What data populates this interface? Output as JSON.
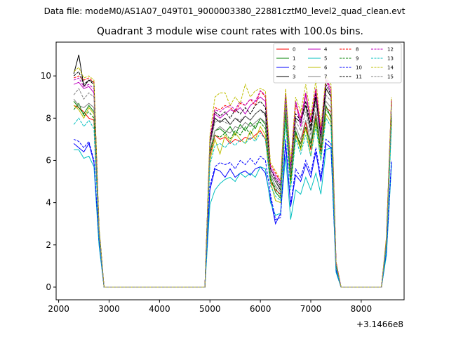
{
  "suptitle": "Data file: modeM0/AS1A07_049T01_9000003380_22881cztM0_level2_quad_clean.evt",
  "chart_data": {
    "type": "line",
    "title": "Quadrant 3 module wise count rates with 100.0s bins.",
    "xlabel": "",
    "ylabel": "",
    "x_offset_label": "+3.1466e8",
    "xlim": [
      1950,
      8850
    ],
    "ylim": [
      -0.6,
      11.6
    ],
    "x_ticks": [
      2000,
      3000,
      4000,
      5000,
      6000,
      7000,
      8000
    ],
    "x_tick_labels": [
      "2000",
      "3000",
      "4000",
      "5000",
      "6000",
      "7000",
      "8000"
    ],
    "y_ticks": [
      0,
      2,
      4,
      6,
      8,
      10
    ],
    "y_tick_labels": [
      "0",
      "2",
      "4",
      "6",
      "8",
      "10"
    ],
    "grid": false,
    "legend_position": "top-right",
    "x": [
      2300,
      2400,
      2500,
      2600,
      2700,
      2800,
      2900,
      3000,
      3100,
      3200,
      3300,
      3400,
      3500,
      3600,
      3700,
      3800,
      3900,
      4000,
      4100,
      4200,
      4300,
      4400,
      4500,
      4600,
      4700,
      4800,
      4900,
      5000,
      5100,
      5200,
      5300,
      5400,
      5500,
      5600,
      5700,
      5800,
      5900,
      6000,
      6100,
      6200,
      6300,
      6400,
      6500,
      6600,
      6700,
      6800,
      6900,
      7000,
      7100,
      7200,
      7300,
      7400,
      7500,
      7600,
      7700,
      7800,
      7900,
      8000,
      8100,
      8200,
      8300,
      8400,
      8500,
      8600
    ],
    "series": [
      {
        "name": "0",
        "color": "#ff0000",
        "dash": "solid",
        "values": [
          8.6,
          8.5,
          8.3,
          8.0,
          7.9,
          2.5,
          0,
          0,
          0,
          0,
          0,
          0,
          0,
          0,
          0,
          0,
          0,
          0,
          0,
          0,
          0,
          0,
          0,
          0,
          0,
          0,
          0,
          6.2,
          7.2,
          7.0,
          7.1,
          6.8,
          7.0,
          6.9,
          7.1,
          7.0,
          7.2,
          7.4,
          7.0,
          5.0,
          4.6,
          4.4,
          8.4,
          5.0,
          7.2,
          6.8,
          7.8,
          6.5,
          8.2,
          6.4,
          8.5,
          8.3,
          1.0,
          0,
          0,
          0,
          0,
          0,
          0,
          0,
          0,
          0,
          2.0,
          8.0
        ]
      },
      {
        "name": "1",
        "color": "#008000",
        "dash": "solid",
        "values": [
          8.8,
          8.5,
          8.2,
          8.6,
          8.3,
          2.6,
          0,
          0,
          0,
          0,
          0,
          0,
          0,
          0,
          0,
          0,
          0,
          0,
          0,
          0,
          0,
          0,
          0,
          0,
          0,
          0,
          0,
          6.4,
          7.4,
          7.5,
          7.3,
          7.6,
          7.2,
          7.7,
          7.4,
          7.8,
          7.5,
          8.0,
          7.7,
          5.2,
          4.5,
          4.2,
          8.3,
          5.2,
          7.4,
          6.6,
          7.5,
          6.8,
          8.0,
          6.6,
          8.6,
          8.0,
          1.0,
          0,
          0,
          0,
          0,
          0,
          0,
          0,
          0,
          0,
          2.1,
          8.1
        ]
      },
      {
        "name": "2",
        "color": "#0000ff",
        "dash": "solid",
        "values": [
          6.8,
          6.6,
          6.4,
          6.8,
          5.9,
          2.2,
          0,
          0,
          0,
          0,
          0,
          0,
          0,
          0,
          0,
          0,
          0,
          0,
          0,
          0,
          0,
          0,
          0,
          0,
          0,
          0,
          0,
          4.6,
          5.6,
          5.5,
          5.2,
          5.6,
          5.2,
          5.4,
          5.5,
          5.3,
          5.6,
          5.7,
          5.4,
          4.2,
          3.0,
          3.5,
          6.8,
          3.8,
          5.3,
          5.0,
          5.8,
          5.2,
          6.4,
          5.0,
          6.8,
          6.6,
          0.8,
          0,
          0,
          0,
          0,
          0,
          0,
          0,
          0,
          0,
          1.6,
          5.9
        ]
      },
      {
        "name": "3",
        "color": "#000000",
        "dash": "solid",
        "values": [
          10.1,
          11.0,
          9.5,
          9.8,
          9.7,
          2.8,
          0,
          0,
          0,
          0,
          0,
          0,
          0,
          0,
          0,
          0,
          0,
          0,
          0,
          0,
          0,
          0,
          0,
          0,
          0,
          0,
          0,
          6.8,
          8.0,
          7.8,
          8.0,
          7.7,
          8.0,
          7.8,
          8.1,
          7.9,
          8.2,
          8.4,
          8.2,
          5.4,
          5.0,
          4.6,
          9.0,
          5.4,
          8.0,
          7.8,
          8.6,
          7.4,
          9.0,
          7.0,
          9.4,
          9.0,
          1.1,
          0,
          0,
          0,
          0,
          0,
          0,
          0,
          0,
          0,
          2.2,
          8.9
        ]
      },
      {
        "name": "4",
        "color": "#bf00bf",
        "dash": "solid",
        "values": [
          9.6,
          9.7,
          9.4,
          9.5,
          9.2,
          2.7,
          0,
          0,
          0,
          0,
          0,
          0,
          0,
          0,
          0,
          0,
          0,
          0,
          0,
          0,
          0,
          0,
          0,
          0,
          0,
          0,
          0,
          6.9,
          8.2,
          8.0,
          8.2,
          8.4,
          8.3,
          8.5,
          8.2,
          8.6,
          8.8,
          9.0,
          8.8,
          5.6,
          5.2,
          4.9,
          9.1,
          5.6,
          8.8,
          7.6,
          9.1,
          7.8,
          9.2,
          7.2,
          9.8,
          9.2,
          1.2,
          0,
          0,
          0,
          0,
          0,
          0,
          0,
          0,
          0,
          2.3,
          8.8
        ]
      },
      {
        "name": "5",
        "color": "#00bfbf",
        "dash": "solid",
        "values": [
          6.5,
          6.5,
          6.1,
          6.2,
          5.7,
          2.0,
          0,
          0,
          0,
          0,
          0,
          0,
          0,
          0,
          0,
          0,
          0,
          0,
          0,
          0,
          0,
          0,
          0,
          0,
          0,
          0,
          0,
          3.9,
          4.6,
          4.9,
          5.1,
          5.2,
          5.0,
          5.4,
          5.2,
          5.4,
          5.2,
          5.7,
          5.6,
          4.0,
          3.4,
          3.5,
          6.2,
          3.2,
          4.6,
          4.4,
          5.2,
          4.6,
          5.4,
          4.4,
          6.5,
          6.6,
          0.7,
          0,
          0,
          0,
          0,
          0,
          0,
          0,
          0,
          0,
          1.5,
          5.8
        ]
      },
      {
        "name": "6",
        "color": "#bfbf00",
        "dash": "solid",
        "values": [
          8.6,
          8.4,
          8.0,
          8.5,
          8.2,
          2.5,
          0,
          0,
          0,
          0,
          0,
          0,
          0,
          0,
          0,
          0,
          0,
          0,
          0,
          0,
          0,
          0,
          0,
          0,
          0,
          0,
          0,
          6.0,
          7.0,
          6.3,
          7.2,
          6.9,
          7.3,
          7.0,
          6.8,
          7.4,
          7.0,
          7.6,
          7.2,
          5.0,
          4.1,
          4.0,
          8.0,
          4.8,
          7.2,
          6.5,
          7.5,
          6.2,
          7.8,
          6.0,
          8.2,
          7.8,
          1.0,
          0,
          0,
          0,
          0,
          0,
          0,
          0,
          0,
          0,
          2.0,
          7.8
        ]
      },
      {
        "name": "7",
        "color": "#808080",
        "dash": "solid",
        "values": [
          8.9,
          8.6,
          8.5,
          8.7,
          8.5,
          2.6,
          0,
          0,
          0,
          0,
          0,
          0,
          0,
          0,
          0,
          0,
          0,
          0,
          0,
          0,
          0,
          0,
          0,
          0,
          0,
          0,
          0,
          6.5,
          7.4,
          7.6,
          7.4,
          7.3,
          7.6,
          7.5,
          7.8,
          7.6,
          7.8,
          8.0,
          7.8,
          5.3,
          4.8,
          4.5,
          8.6,
          5.3,
          7.6,
          7.0,
          7.9,
          6.9,
          8.3,
          6.7,
          8.8,
          8.5,
          1.0,
          0,
          0,
          0,
          0,
          0,
          0,
          0,
          0,
          0,
          2.1,
          8.2
        ]
      },
      {
        "name": "8",
        "color": "#ff0000",
        "dash": "dashed",
        "values": [
          9.9,
          10.0,
          9.8,
          9.9,
          9.7,
          2.8,
          0,
          0,
          0,
          0,
          0,
          0,
          0,
          0,
          0,
          0,
          0,
          0,
          0,
          0,
          0,
          0,
          0,
          0,
          0,
          0,
          0,
          7.0,
          8.5,
          8.4,
          8.6,
          8.5,
          8.3,
          8.7,
          8.6,
          8.9,
          8.6,
          9.3,
          9.0,
          5.8,
          5.4,
          5.0,
          9.3,
          5.8,
          8.6,
          8.0,
          9.2,
          7.8,
          9.4,
          7.4,
          9.8,
          9.4,
          1.2,
          0,
          0,
          0,
          0,
          0,
          0,
          0,
          0,
          0,
          2.3,
          8.9
        ]
      },
      {
        "name": "9",
        "color": "#008000",
        "dash": "dashed",
        "values": [
          8.4,
          8.7,
          8.1,
          8.3,
          8.0,
          2.5,
          0,
          0,
          0,
          0,
          0,
          0,
          0,
          0,
          0,
          0,
          0,
          0,
          0,
          0,
          0,
          0,
          0,
          0,
          0,
          0,
          0,
          6.3,
          7.2,
          7.1,
          7.3,
          7.0,
          7.4,
          7.2,
          7.6,
          7.2,
          7.7,
          7.8,
          7.5,
          5.1,
          4.7,
          4.3,
          8.2,
          5.0,
          7.3,
          6.8,
          7.6,
          6.6,
          8.0,
          6.3,
          8.4,
          8.1,
          1.0,
          0,
          0,
          0,
          0,
          0,
          0,
          0,
          0,
          0,
          2.0,
          8.0
        ]
      },
      {
        "name": "10",
        "color": "#0000ff",
        "dash": "dashed",
        "values": [
          7.0,
          6.9,
          6.6,
          6.9,
          6.0,
          2.2,
          0,
          0,
          0,
          0,
          0,
          0,
          0,
          0,
          0,
          0,
          0,
          0,
          0,
          0,
          0,
          0,
          0,
          0,
          0,
          0,
          0,
          4.8,
          5.7,
          5.9,
          5.8,
          5.9,
          5.6,
          6.0,
          5.8,
          6.1,
          5.8,
          6.2,
          6.0,
          4.4,
          3.2,
          3.3,
          7.0,
          3.9,
          5.6,
          5.2,
          6.0,
          5.4,
          6.6,
          5.2,
          7.0,
          6.8,
          0.8,
          0,
          0,
          0,
          0,
          0,
          0,
          0,
          0,
          0,
          1.7,
          6.0
        ]
      },
      {
        "name": "11",
        "color": "#000000",
        "dash": "dashed",
        "values": [
          10.0,
          10.2,
          9.6,
          9.8,
          9.6,
          2.8,
          0,
          0,
          0,
          0,
          0,
          0,
          0,
          0,
          0,
          0,
          0,
          0,
          0,
          0,
          0,
          0,
          0,
          0,
          0,
          0,
          0,
          6.9,
          8.3,
          8.1,
          8.3,
          8.0,
          8.4,
          8.2,
          8.5,
          8.2,
          8.6,
          8.8,
          8.5,
          5.6,
          5.1,
          4.8,
          9.2,
          5.5,
          8.2,
          7.9,
          8.8,
          7.6,
          9.2,
          7.1,
          9.6,
          9.1,
          1.1,
          0,
          0,
          0,
          0,
          0,
          0,
          0,
          0,
          0,
          2.2,
          8.8
        ]
      },
      {
        "name": "12",
        "color": "#bf00bf",
        "dash": "dashed",
        "values": [
          9.8,
          9.9,
          9.5,
          9.6,
          9.4,
          2.7,
          0,
          0,
          0,
          0,
          0,
          0,
          0,
          0,
          0,
          0,
          0,
          0,
          0,
          0,
          0,
          0,
          0,
          0,
          0,
          0,
          0,
          7.0,
          8.4,
          8.3,
          8.5,
          8.6,
          8.4,
          8.8,
          8.6,
          8.9,
          8.8,
          9.3,
          9.1,
          5.7,
          5.3,
          5.0,
          9.2,
          5.7,
          8.8,
          7.9,
          9.2,
          7.9,
          9.4,
          7.3,
          9.9,
          9.4,
          1.2,
          0,
          0,
          0,
          0,
          0,
          0,
          0,
          0,
          0,
          2.3,
          8.9
        ]
      },
      {
        "name": "13",
        "color": "#00bfbf",
        "dash": "dashed",
        "values": [
          7.7,
          8.0,
          7.6,
          7.9,
          7.5,
          2.4,
          0,
          0,
          0,
          0,
          0,
          0,
          0,
          0,
          0,
          0,
          0,
          0,
          0,
          0,
          0,
          0,
          0,
          0,
          0,
          0,
          0,
          5.8,
          6.7,
          6.8,
          6.6,
          6.9,
          6.7,
          7.0,
          6.8,
          7.1,
          6.9,
          7.3,
          7.0,
          4.8,
          4.3,
          4.1,
          7.8,
          4.6,
          7.0,
          6.3,
          7.2,
          6.2,
          7.6,
          6.0,
          8.0,
          7.6,
          0.9,
          0,
          0,
          0,
          0,
          0,
          0,
          0,
          0,
          0,
          1.9,
          7.6
        ]
      },
      {
        "name": "14",
        "color": "#bfbf00",
        "dash": "dashed",
        "values": [
          10.2,
          10.4,
          9.9,
          10.0,
          9.8,
          2.9,
          0,
          0,
          0,
          0,
          0,
          0,
          0,
          0,
          0,
          0,
          0,
          0,
          0,
          0,
          0,
          0,
          0,
          0,
          0,
          0,
          0,
          7.2,
          9.0,
          9.2,
          9.2,
          8.6,
          9.0,
          8.7,
          9.6,
          9.0,
          9.3,
          9.4,
          9.3,
          5.9,
          5.5,
          5.1,
          9.4,
          5.9,
          9.0,
          8.3,
          9.6,
          8.1,
          9.8,
          7.6,
          10.0,
          9.6,
          1.2,
          0,
          0,
          0,
          0,
          0,
          0,
          0,
          0,
          0,
          2.4,
          9.0
        ]
      },
      {
        "name": "15",
        "color": "#808080",
        "dash": "dashed",
        "values": [
          9.1,
          9.4,
          8.9,
          9.2,
          9.0,
          2.7,
          0,
          0,
          0,
          0,
          0,
          0,
          0,
          0,
          0,
          0,
          0,
          0,
          0,
          0,
          0,
          0,
          0,
          0,
          0,
          0,
          0,
          6.7,
          7.8,
          7.9,
          7.8,
          7.7,
          8.0,
          7.9,
          8.1,
          7.9,
          8.2,
          8.4,
          8.1,
          5.4,
          5.0,
          4.7,
          8.8,
          5.4,
          7.9,
          7.4,
          8.3,
          7.2,
          8.7,
          6.9,
          9.1,
          8.8,
          1.1,
          0,
          0,
          0,
          0,
          0,
          0,
          0,
          0,
          0,
          2.2,
          8.5
        ]
      }
    ]
  }
}
